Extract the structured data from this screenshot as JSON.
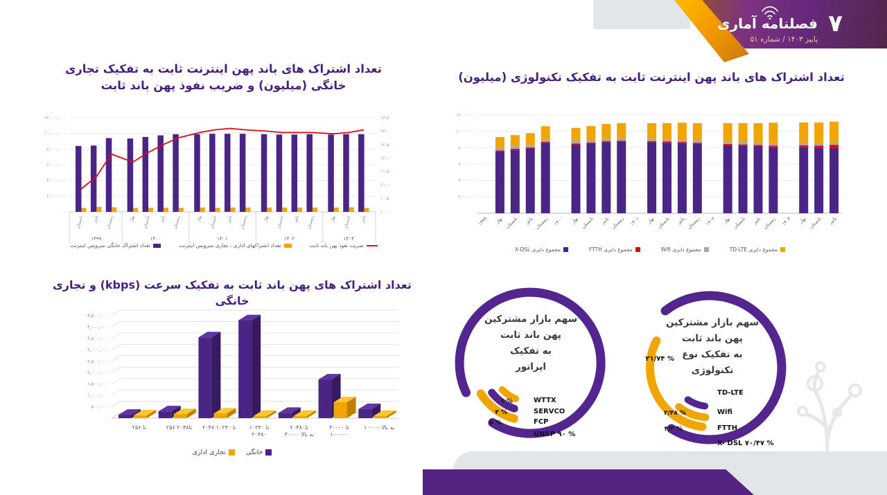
{
  "colors": {
    "purple": "#4b2586",
    "orange": "#f0a500",
    "red": "#e30613",
    "gray": "#a8a8a8",
    "title_purple": "#46217e",
    "banner_purple": "#552483"
  },
  "header": {
    "page_number": "۷",
    "logo_title": "فصلنامه آماری",
    "issue_line": "پاییز ۱۴۰۳ /  شماره ۵۱"
  },
  "chart_data": [
    {
      "id": "subs-by-sector",
      "type": "bar",
      "title_lines": [
        "تعداد اشتراک های باند پهن اینترنت ثابت به تفکیک تجاری",
        "خانگی (میلیون) و ضریب نفوذ پهن باند ثابت"
      ],
      "quarters": [
        "تابستان",
        "پاییز",
        "زمستان",
        "بهار",
        "تابستان",
        "پاییز",
        "زمستان",
        "بهار",
        "تابستان",
        "پاییز",
        "زمستان",
        "بهار",
        "تابستان",
        "پاییز",
        "زمستان",
        "بهار",
        "تابستان",
        "پاییز"
      ],
      "group_sizes": [
        3,
        4,
        4,
        4,
        3
      ],
      "years": [
        "۱۳۹۹",
        "۱۴۰۰",
        "۱۴۰۱",
        "۱۴۰۲",
        "۱۴۰۳"
      ],
      "series": [
        {
          "name": "تعداد اشتراک خانگی سرویس اینترنت",
          "type": "bar",
          "color": "#4b2586",
          "values": [
            8400000,
            8450000,
            9400000,
            9350000,
            9550000,
            9750000,
            9900000,
            9900000,
            9950000,
            9950000,
            9950000,
            9900000,
            9850000,
            9850000,
            9900000,
            9850000,
            9900000,
            9900000
          ]
        },
        {
          "name": "تعداد اشتراکهای اداری ، تجاری سرویس اینترنت",
          "type": "bar",
          "color": "#f0a500",
          "values": [
            500000,
            620000,
            580000,
            500000,
            520000,
            520000,
            520000,
            550000,
            520000,
            550000,
            550000,
            550000,
            550000,
            550000,
            550000,
            550000,
            580000,
            500000
          ]
        },
        {
          "name": "ضریب نفوذ پهن باند ثابت",
          "type": "line",
          "axis": "right",
          "color": "#e30613",
          "values": [
            10.85,
            11.3,
            12.15,
            11.85,
            12.2,
            12.5,
            12.75,
            12.95,
            13.05,
            13.1,
            13.05,
            13.0,
            12.95,
            12.95,
            12.95,
            12.9,
            12.95,
            13.05
          ]
        }
      ],
      "left_axis": {
        "min": 0,
        "max": 12000000,
        "ticks": [
          "۱۲,۰۰۰,۰۰۰",
          "۱۰,۰۰۰,۰۰۰",
          "۸,۰۰۰,۰۰۰",
          "۶,۰۰۰,۰۰۰",
          "۴,۰۰۰,۰۰۰",
          "۲,۰۰۰,۰۰۰",
          "۰"
        ]
      },
      "right_axis": {
        "min": 10,
        "max": 13.5,
        "ticks": [
          "۱۳.۵۰",
          "۱۳.۰۰",
          "۱۲.۵۰",
          "۱۲.۰۰",
          "۱۱.۵۰",
          "۱۱.۰۰",
          "۱۰.۵۰",
          "۱۰.۰۰"
        ]
      }
    },
    {
      "id": "subs-by-technology",
      "type": "bar",
      "title": "تعداد اشتراک های باند پهن اینترنت ثابت به تفکیک تکنولوژی (میلیون)",
      "categories": [
        "۱۳۹۹",
        "بهار",
        "تابستان",
        "پاییز",
        "زمستان",
        "۱۴۰۰",
        "بهار",
        "تابستان",
        "پاییز",
        "زمستان",
        "۱۴۰۱",
        "بهار",
        "تابستان",
        "پاییز",
        "زمستان",
        "۱۴۰۲",
        "بهار",
        "تابستان",
        "پاییز",
        "زمستان",
        "۱۴۰۳",
        "بهار",
        "تابستان",
        "پاییز"
      ],
      "stacked": true,
      "series": [
        {
          "name": "مجموع دایری X-DSL",
          "color": "#4b2586",
          "values": [
            null,
            7550000,
            7750000,
            7900000,
            8600000,
            null,
            8400000,
            8500000,
            8650000,
            8700000,
            null,
            8650000,
            8600000,
            8550000,
            8450000,
            null,
            8300000,
            8250000,
            8150000,
            8050000,
            null,
            8050000,
            7950000,
            7900000
          ]
        },
        {
          "name": "مجموع دایری FTTH",
          "color": "#e30613",
          "values": [
            null,
            120000,
            120000,
            120000,
            120000,
            null,
            120000,
            120000,
            150000,
            150000,
            null,
            150000,
            150000,
            150000,
            150000,
            null,
            150000,
            150000,
            180000,
            200000,
            null,
            250000,
            300000,
            450000
          ]
        },
        {
          "name": "مجموع دایری Wifi",
          "color": "#a8a8a8",
          "values": [
            null,
            320000,
            320000,
            320000,
            300000,
            null,
            300000,
            300000,
            300000,
            300000,
            null,
            300000,
            300000,
            300000,
            300000,
            null,
            300000,
            300000,
            300000,
            300000,
            null,
            280000,
            280000,
            280000
          ]
        },
        {
          "name": "مجموع دایری TD-LTE",
          "color": "#f0a500",
          "values": [
            null,
            1300000,
            1350000,
            1450000,
            1600000,
            null,
            1600000,
            1720000,
            1800000,
            1850000,
            null,
            1900000,
            1950000,
            2050000,
            2100000,
            null,
            2250000,
            2300000,
            2370000,
            2500000,
            null,
            2500000,
            2550000,
            2550000
          ]
        }
      ],
      "y_axis": {
        "min": 0,
        "max": 12000000,
        "ticks": [
          "۱۲۰۰۰۰۰۰",
          "۱۰۰۰۰۰۰۰",
          "۸۰۰۰۰۰۰",
          "۶۰۰۰۰۰۰",
          "۴۰۰۰۰۰۰",
          "۲۰۰۰۰۰۰",
          "۰"
        ]
      }
    },
    {
      "id": "subs-by-speed",
      "type": "bar",
      "style3d": true,
      "title": "تعداد اشتراک های پهن باند ثابت به تفکیک سرعت (kbps) و تجاری خانگی",
      "categories_lines": [
        [
          "تا ۲۵۶"
        ],
        [
          "۲۵۶ تا۲۰۴۸"
        ],
        [
          "۲۰۴۸ تا ۱۰۲۴۰"
        ],
        [
          "۱۰۲۴۰ تا",
          "۲۰۴۸۰"
        ],
        [
          "۲۰۴۸۰تا",
          "۳۰۰۰۰ به بالا"
        ],
        [
          "۳۰۰۰۰ تا",
          "۱۰۰۰۰۰"
        ],
        [
          "۱۰۰۰۰۰به بالا"
        ]
      ],
      "series": [
        {
          "name": "خانگی",
          "color": "#4b2586",
          "values": [
            150000,
            300000,
            3550000,
            4300000,
            230000,
            1700000,
            400000
          ]
        },
        {
          "name": "تجاری اداری",
          "color": "#f0a500",
          "values": [
            120000,
            180000,
            200000,
            100000,
            100000,
            700000,
            100000
          ]
        }
      ],
      "y_axis": {
        "min": 0,
        "max": 4500000,
        "ticks": [
          "۴,۵۰۰,۰۰۰",
          "۴,۰۰۰,۰۰۰",
          "۳,۵۰۰,۰۰۰",
          "۳,۰۰۰,۰۰۰",
          "۲,۵۰۰,۰۰۰",
          "۲,۰۰۰,۰۰۰",
          "۱,۵۰۰,۰۰۰",
          "۱,۰۰۰,۰۰۰",
          "۵۰۰,۰۰۰",
          "۰"
        ]
      }
    },
    {
      "id": "market-share-by-operator",
      "type": "pie",
      "title_lines": [
        "سهم بازار مشترکین",
        "پهن باند ثابت",
        "به تفکیک",
        "اپراتور"
      ],
      "segments": [
        {
          "name": "WTTX",
          "pct": "۱ %",
          "value": 1,
          "color": "#f0a500"
        },
        {
          "name": "SERVCO",
          "pct": "۴ %",
          "value": 4,
          "color": "#53258e"
        },
        {
          "name": "FCP",
          "pct": "۵ %",
          "value": 5,
          "color": "#f0a500"
        },
        {
          "name": "UNSP",
          "pct": "۹۰ %",
          "value": 90,
          "color": "#53258e"
        }
      ]
    },
    {
      "id": "market-share-by-technology",
      "type": "pie",
      "title_lines": [
        "سهم بازار مشترکین",
        "پهن باند ثابت",
        "به تفکیک نوع",
        "تکنولوژی"
      ],
      "segments": [
        {
          "name": "TD-LTE",
          "pct": "۲۱/۷۴ %",
          "value": 21.74,
          "color": "#f0a500"
        },
        {
          "name": "Wifi",
          "pct": "۳/۴۸ %",
          "value": 3.48,
          "color": "#53258e"
        },
        {
          "name": "FTTH",
          "pct": "۴/۳ %",
          "value": 4.3,
          "color": "#f0a500"
        },
        {
          "name": "X- DSL",
          "pct": "۷۰/۴۷ %",
          "value": 70.47,
          "color": "#53258e"
        }
      ]
    }
  ]
}
